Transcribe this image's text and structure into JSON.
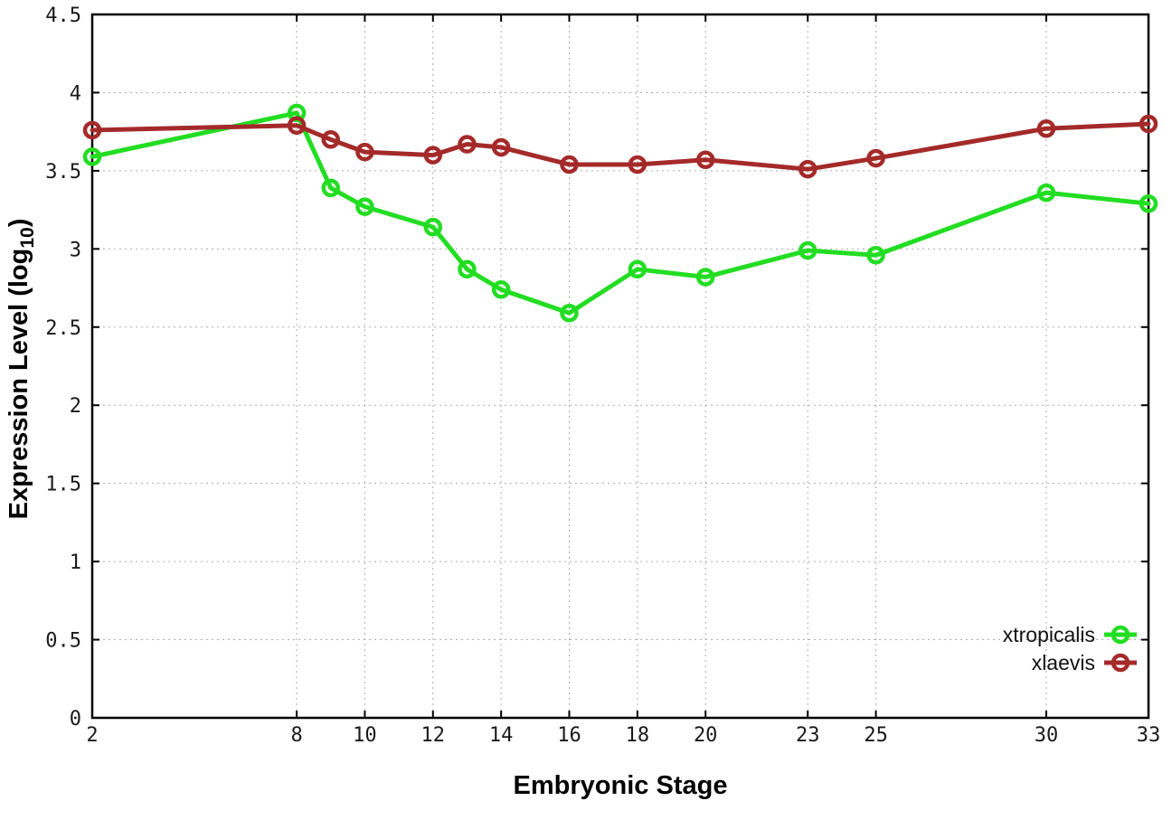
{
  "chart_data": {
    "type": "line",
    "title": "",
    "xlabel": "Embryonic Stage",
    "ylabel": "Expression Level (log10)",
    "ylabel_parts": {
      "pre": "Expression Level (log",
      "sub": "10",
      "post": ")"
    },
    "xlim": [
      2,
      33
    ],
    "ylim": [
      0,
      4.5
    ],
    "x_ticks": [
      2,
      8,
      10,
      12,
      14,
      16,
      18,
      20,
      23,
      25,
      30,
      33
    ],
    "y_ticks": [
      0,
      0.5,
      1,
      1.5,
      2,
      2.5,
      3,
      3.5,
      4,
      4.5
    ],
    "grid": true,
    "legend_position": "inside-bottom-right",
    "marker": "open-circle",
    "x": [
      2,
      8,
      9,
      10,
      12,
      13,
      14,
      16,
      18,
      20,
      23,
      25,
      30,
      33
    ],
    "series": [
      {
        "name": "xtropicalis",
        "color": "#22dd22",
        "values": [
          3.59,
          3.87,
          3.39,
          3.27,
          3.14,
          2.87,
          2.74,
          2.59,
          2.87,
          2.82,
          2.99,
          2.96,
          3.36,
          3.29
        ]
      },
      {
        "name": "xlaevis",
        "color": "#a42a2a",
        "values": [
          3.76,
          3.79,
          3.7,
          3.62,
          3.6,
          3.67,
          3.65,
          3.54,
          3.54,
          3.57,
          3.51,
          3.58,
          3.77,
          3.8
        ]
      }
    ],
    "style": {
      "background": "#ffffff",
      "axis_color": "#000000",
      "grid_color": "#adadad",
      "tick_label_color": "#1a1a1a",
      "line_width": 5,
      "marker_radius": 8
    }
  }
}
